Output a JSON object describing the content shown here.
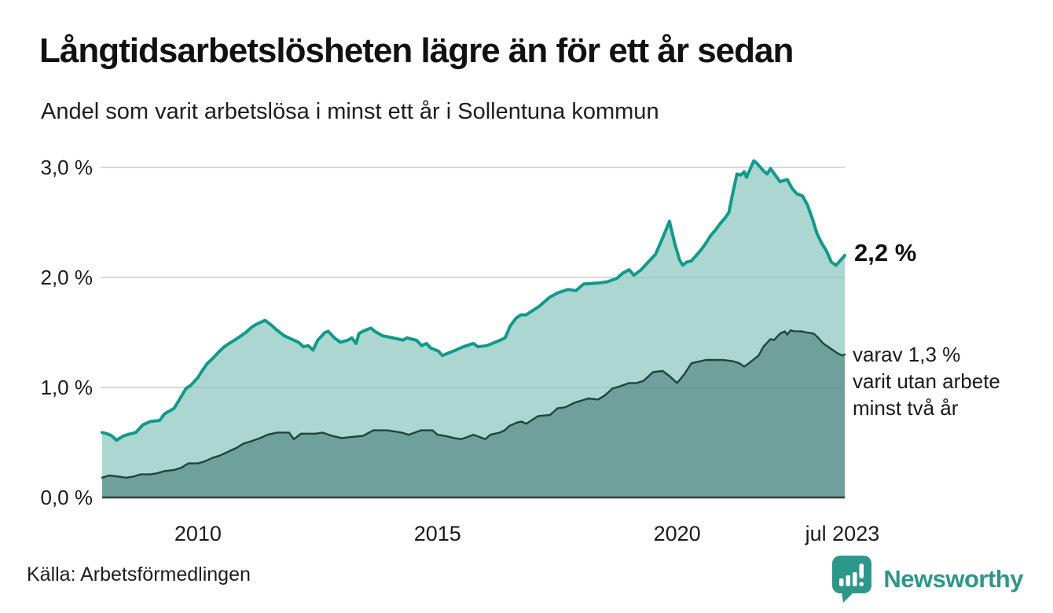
{
  "header": {
    "title": "Långtidsarbetslösheten lägre än för ett år sedan",
    "subtitle": "Andel som varit arbetslösa i minst ett år i Sollentuna kommun"
  },
  "annotations": {
    "series1_end_label": "2,2 %",
    "series2_end_label": "varav 1,3 %\nvarit utan arbete\nminst två år"
  },
  "footer": {
    "source": "Källa: Arbetsförmedlingen",
    "logo_text": "Newsworthy"
  },
  "colors": {
    "series1_line": "#12998b",
    "series1_fill": "#abd7d0",
    "series2_line": "#1f453f",
    "series2_fill": "#6fa09b",
    "gridline": "#dcdcdc",
    "gridline_overlay": "rgba(0,0,0,0.07)",
    "axis_line": "#3a3a3a",
    "logo_teal": "#2e968a",
    "text": "#1a1a1a"
  },
  "chart_data": {
    "type": "area",
    "title": "Långtidsarbetslösheten lägre än för ett år sedan",
    "subtitle": "Andel som varit arbetslösa i minst ett år i Sollentuna kommun",
    "xlabel": "",
    "ylabel": "",
    "xlim": [
      2008.0,
      2023.5
    ],
    "ylim": [
      0.0,
      3.2
    ],
    "grid": true,
    "legend_position": "right-annotations",
    "yticks": [
      {
        "v": 0.0,
        "label": "0,0 %"
      },
      {
        "v": 1.0,
        "label": "1,0 %"
      },
      {
        "v": 2.0,
        "label": "2,0 %"
      },
      {
        "v": 3.0,
        "label": "3,0 %"
      }
    ],
    "xticks": [
      {
        "t": 2010.0,
        "label": "2010"
      },
      {
        "t": 2015.0,
        "label": "2015"
      },
      {
        "t": 2020.0,
        "label": "2020"
      },
      {
        "t": 2023.45,
        "label": "jul 2023"
      }
    ],
    "series": [
      {
        "name": "Arbetslösa minst ett år",
        "end_value": "2,2 %",
        "points": [
          [
            2008.0,
            0.59
          ],
          [
            2008.1,
            0.58
          ],
          [
            2008.2,
            0.56
          ],
          [
            2008.3,
            0.52
          ],
          [
            2008.45,
            0.56
          ],
          [
            2008.6,
            0.58
          ],
          [
            2008.7,
            0.59
          ],
          [
            2008.85,
            0.66
          ],
          [
            2009.0,
            0.69
          ],
          [
            2009.2,
            0.7
          ],
          [
            2009.3,
            0.76
          ],
          [
            2009.5,
            0.81
          ],
          [
            2009.6,
            0.88
          ],
          [
            2009.75,
            0.99
          ],
          [
            2009.85,
            1.02
          ],
          [
            2010.0,
            1.09
          ],
          [
            2010.1,
            1.16
          ],
          [
            2010.2,
            1.22
          ],
          [
            2010.3,
            1.26
          ],
          [
            2010.45,
            1.33
          ],
          [
            2010.55,
            1.37
          ],
          [
            2010.65,
            1.4
          ],
          [
            2010.8,
            1.44
          ],
          [
            2010.9,
            1.47
          ],
          [
            2011.0,
            1.5
          ],
          [
            2011.1,
            1.54
          ],
          [
            2011.2,
            1.57
          ],
          [
            2011.4,
            1.61
          ],
          [
            2011.55,
            1.56
          ],
          [
            2011.65,
            1.52
          ],
          [
            2011.8,
            1.47
          ],
          [
            2011.95,
            1.44
          ],
          [
            2012.1,
            1.41
          ],
          [
            2012.2,
            1.37
          ],
          [
            2012.3,
            1.38
          ],
          [
            2012.4,
            1.34
          ],
          [
            2012.5,
            1.43
          ],
          [
            2012.65,
            1.5
          ],
          [
            2012.72,
            1.51
          ],
          [
            2012.85,
            1.45
          ],
          [
            2012.97,
            1.41
          ],
          [
            2013.13,
            1.43
          ],
          [
            2013.21,
            1.45
          ],
          [
            2013.3,
            1.4
          ],
          [
            2013.36,
            1.49
          ],
          [
            2013.44,
            1.51
          ],
          [
            2013.61,
            1.54
          ],
          [
            2013.69,
            1.51
          ],
          [
            2013.85,
            1.47
          ],
          [
            2014.07,
            1.45
          ],
          [
            2014.28,
            1.43
          ],
          [
            2014.36,
            1.45
          ],
          [
            2014.56,
            1.43
          ],
          [
            2014.67,
            1.38
          ],
          [
            2014.77,
            1.4
          ],
          [
            2014.85,
            1.36
          ],
          [
            2015.02,
            1.33
          ],
          [
            2015.1,
            1.29
          ],
          [
            2015.21,
            1.31
          ],
          [
            2015.33,
            1.33
          ],
          [
            2015.54,
            1.37
          ],
          [
            2015.75,
            1.4
          ],
          [
            2015.84,
            1.37
          ],
          [
            2016.03,
            1.38
          ],
          [
            2016.31,
            1.43
          ],
          [
            2016.41,
            1.45
          ],
          [
            2016.52,
            1.56
          ],
          [
            2016.64,
            1.63
          ],
          [
            2016.74,
            1.66
          ],
          [
            2016.85,
            1.66
          ],
          [
            2017.13,
            1.74
          ],
          [
            2017.34,
            1.82
          ],
          [
            2017.51,
            1.86
          ],
          [
            2017.72,
            1.89
          ],
          [
            2017.89,
            1.88
          ],
          [
            2018.05,
            1.94
          ],
          [
            2018.38,
            1.95
          ],
          [
            2018.54,
            1.96
          ],
          [
            2018.74,
            1.99
          ],
          [
            2018.87,
            2.04
          ],
          [
            2019.0,
            2.07
          ],
          [
            2019.1,
            2.02
          ],
          [
            2019.25,
            2.07
          ],
          [
            2019.4,
            2.14
          ],
          [
            2019.55,
            2.21
          ],
          [
            2019.7,
            2.36
          ],
          [
            2019.84,
            2.51
          ],
          [
            2019.95,
            2.31
          ],
          [
            2020.05,
            2.16
          ],
          [
            2020.12,
            2.11
          ],
          [
            2020.2,
            2.14
          ],
          [
            2020.3,
            2.15
          ],
          [
            2020.4,
            2.2
          ],
          [
            2020.5,
            2.25
          ],
          [
            2020.6,
            2.31
          ],
          [
            2020.7,
            2.38
          ],
          [
            2020.8,
            2.43
          ],
          [
            2020.9,
            2.49
          ],
          [
            2021.0,
            2.54
          ],
          [
            2021.08,
            2.59
          ],
          [
            2021.15,
            2.74
          ],
          [
            2021.25,
            2.94
          ],
          [
            2021.33,
            2.93
          ],
          [
            2021.4,
            2.96
          ],
          [
            2021.45,
            2.91
          ],
          [
            2021.54,
            3.0
          ],
          [
            2021.6,
            3.06
          ],
          [
            2021.66,
            3.04
          ],
          [
            2021.72,
            3.01
          ],
          [
            2021.8,
            2.97
          ],
          [
            2021.88,
            2.94
          ],
          [
            2021.95,
            2.99
          ],
          [
            2022.05,
            2.93
          ],
          [
            2022.15,
            2.87
          ],
          [
            2022.22,
            2.88
          ],
          [
            2022.3,
            2.89
          ],
          [
            2022.4,
            2.81
          ],
          [
            2022.5,
            2.76
          ],
          [
            2022.62,
            2.74
          ],
          [
            2022.72,
            2.66
          ],
          [
            2022.82,
            2.54
          ],
          [
            2022.92,
            2.4
          ],
          [
            2023.02,
            2.31
          ],
          [
            2023.12,
            2.24
          ],
          [
            2023.22,
            2.14
          ],
          [
            2023.32,
            2.11
          ],
          [
            2023.42,
            2.16
          ],
          [
            2023.5,
            2.2
          ]
        ]
      },
      {
        "name": "varav arbetslösa minst två år",
        "end_value": "1,3 %",
        "points": [
          [
            2008.0,
            0.18
          ],
          [
            2008.15,
            0.2
          ],
          [
            2008.35,
            0.19
          ],
          [
            2008.5,
            0.18
          ],
          [
            2008.65,
            0.19
          ],
          [
            2008.8,
            0.21
          ],
          [
            2009.0,
            0.21
          ],
          [
            2009.15,
            0.22
          ],
          [
            2009.3,
            0.24
          ],
          [
            2009.5,
            0.25
          ],
          [
            2009.65,
            0.27
          ],
          [
            2009.8,
            0.31
          ],
          [
            2010.0,
            0.31
          ],
          [
            2010.15,
            0.33
          ],
          [
            2010.3,
            0.36
          ],
          [
            2010.45,
            0.38
          ],
          [
            2010.6,
            0.41
          ],
          [
            2010.8,
            0.45
          ],
          [
            2010.95,
            0.49
          ],
          [
            2011.1,
            0.51
          ],
          [
            2011.3,
            0.54
          ],
          [
            2011.45,
            0.57
          ],
          [
            2011.65,
            0.59
          ],
          [
            2011.9,
            0.59
          ],
          [
            2012.0,
            0.53
          ],
          [
            2012.15,
            0.58
          ],
          [
            2012.45,
            0.58
          ],
          [
            2012.6,
            0.59
          ],
          [
            2012.8,
            0.56
          ],
          [
            2013.0,
            0.54
          ],
          [
            2013.2,
            0.55
          ],
          [
            2013.45,
            0.56
          ],
          [
            2013.57,
            0.59
          ],
          [
            2013.66,
            0.61
          ],
          [
            2013.95,
            0.61
          ],
          [
            2014.25,
            0.59
          ],
          [
            2014.4,
            0.57
          ],
          [
            2014.65,
            0.61
          ],
          [
            2014.9,
            0.61
          ],
          [
            2015.0,
            0.57
          ],
          [
            2015.15,
            0.56
          ],
          [
            2015.35,
            0.54
          ],
          [
            2015.5,
            0.53
          ],
          [
            2015.75,
            0.57
          ],
          [
            2016.0,
            0.53
          ],
          [
            2016.1,
            0.57
          ],
          [
            2016.3,
            0.59
          ],
          [
            2016.4,
            0.61
          ],
          [
            2016.5,
            0.65
          ],
          [
            2016.65,
            0.68
          ],
          [
            2016.75,
            0.69
          ],
          [
            2016.85,
            0.67
          ],
          [
            2017.1,
            0.74
          ],
          [
            2017.35,
            0.75
          ],
          [
            2017.5,
            0.81
          ],
          [
            2017.67,
            0.82
          ],
          [
            2017.85,
            0.86
          ],
          [
            2018.0,
            0.88
          ],
          [
            2018.15,
            0.9
          ],
          [
            2018.35,
            0.89
          ],
          [
            2018.5,
            0.93
          ],
          [
            2018.65,
            0.99
          ],
          [
            2018.8,
            1.01
          ],
          [
            2019.0,
            1.04
          ],
          [
            2019.15,
            1.04
          ],
          [
            2019.3,
            1.06
          ],
          [
            2019.5,
            1.14
          ],
          [
            2019.7,
            1.15
          ],
          [
            2019.85,
            1.1
          ],
          [
            2020.0,
            1.04
          ],
          [
            2020.15,
            1.12
          ],
          [
            2020.3,
            1.22
          ],
          [
            2020.6,
            1.25
          ],
          [
            2020.95,
            1.25
          ],
          [
            2021.15,
            1.24
          ],
          [
            2021.3,
            1.22
          ],
          [
            2021.4,
            1.19
          ],
          [
            2021.5,
            1.22
          ],
          [
            2021.7,
            1.29
          ],
          [
            2021.8,
            1.37
          ],
          [
            2021.95,
            1.44
          ],
          [
            2022.02,
            1.43
          ],
          [
            2022.15,
            1.49
          ],
          [
            2022.25,
            1.51
          ],
          [
            2022.3,
            1.48
          ],
          [
            2022.37,
            1.52
          ],
          [
            2022.45,
            1.51
          ],
          [
            2022.6,
            1.51
          ],
          [
            2022.7,
            1.5
          ],
          [
            2022.85,
            1.49
          ],
          [
            2022.95,
            1.45
          ],
          [
            2023.05,
            1.4
          ],
          [
            2023.15,
            1.37
          ],
          [
            2023.25,
            1.34
          ],
          [
            2023.35,
            1.31
          ],
          [
            2023.45,
            1.29
          ],
          [
            2023.5,
            1.3
          ]
        ]
      }
    ]
  }
}
